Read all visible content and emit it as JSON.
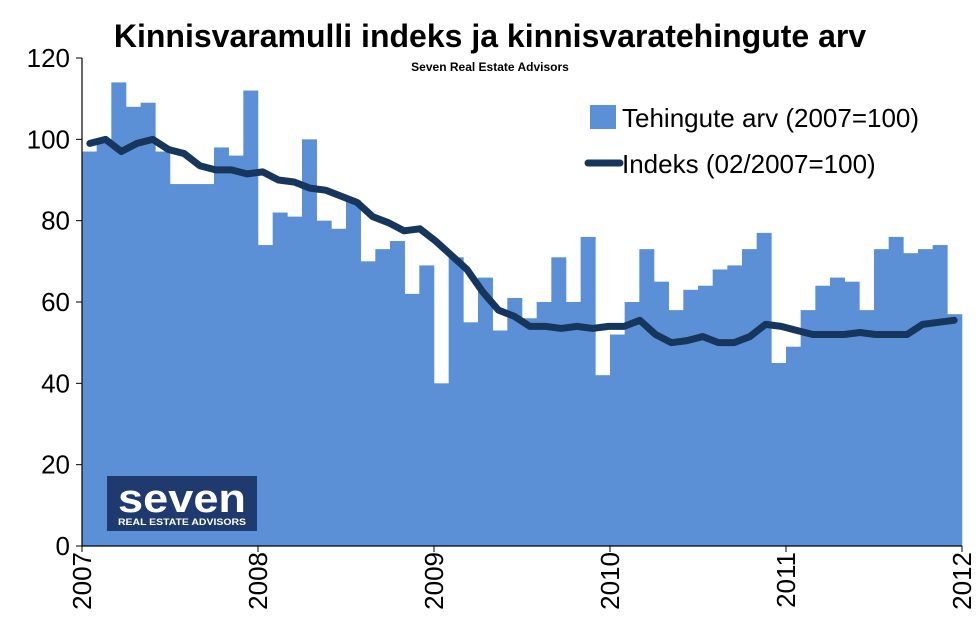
{
  "colors": {
    "bar": "#5b8fd6",
    "line": "#17365d",
    "axis": "#000000",
    "logo_bg": "#1e3a6e",
    "logo_text": "#ffffff"
  },
  "logo": {
    "word": "seven",
    "tagline": "REAL ESTATE ADVISORS"
  },
  "chart_data": {
    "type": "bar+line",
    "title": "Kinnisvaramulli indeks ja kinnisvaratehingute arv",
    "subtitle": "Seven Real Estate Advisors",
    "xlabel": "",
    "ylabel": "",
    "ylim": [
      0,
      120
    ],
    "yticks": [
      0,
      20,
      40,
      60,
      80,
      100,
      120
    ],
    "xlim": [
      2007,
      2012
    ],
    "xticks": [
      "2007",
      "2008",
      "2009",
      "2010",
      "2011",
      "2012"
    ],
    "grid": false,
    "legend_position": "top-right",
    "series": [
      {
        "name": "Tehingute arv (2007=100)",
        "type": "bar",
        "values": [
          97,
          100,
          114,
          108,
          109,
          97,
          89,
          89,
          89,
          98,
          96,
          112,
          74,
          82,
          81,
          100,
          80,
          78,
          85,
          70,
          73,
          75,
          62,
          69,
          40,
          71,
          55,
          66,
          53,
          61,
          56,
          60,
          71,
          60,
          76,
          42,
          52,
          60,
          73,
          65,
          58,
          63,
          64,
          68,
          69,
          73,
          77,
          45,
          49,
          58,
          64,
          66,
          65,
          58,
          73,
          76,
          72,
          73,
          74,
          57
        ]
      },
      {
        "name": "Indeks (02/2007=100)",
        "type": "line",
        "values": [
          99,
          100,
          97,
          99,
          100,
          97.5,
          96.5,
          93.5,
          92.5,
          92.5,
          91.5,
          92,
          90,
          89.5,
          88,
          87.5,
          86,
          84.5,
          81,
          79.5,
          77.5,
          78,
          75,
          71.5,
          68,
          62.5,
          58,
          56.5,
          54,
          54,
          53.5,
          54,
          53.5,
          54,
          54,
          55.5,
          52,
          50,
          50.5,
          51.5,
          50,
          50,
          51.5,
          54.5,
          54,
          53,
          52,
          52,
          52,
          52.5,
          52,
          52,
          52,
          54.5,
          55,
          55.5
        ]
      }
    ]
  }
}
